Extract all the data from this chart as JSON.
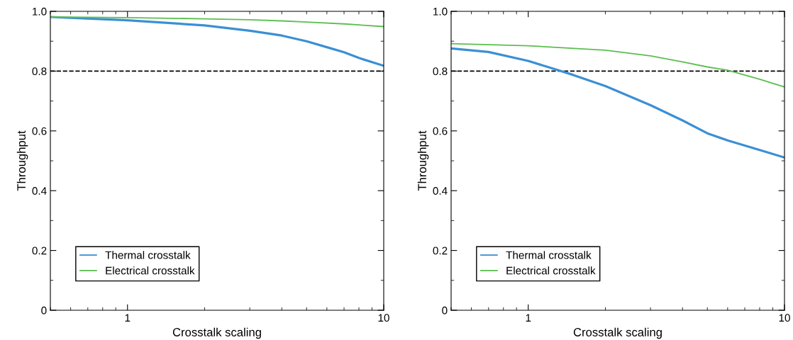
{
  "chart_data": [
    {
      "type": "line",
      "xlabel": "Crosstalk scaling",
      "ylabel": "Throughput",
      "log": "x",
      "xlim": [
        0.5,
        10
      ],
      "xticks": [
        1,
        10
      ],
      "ylim": [
        0,
        1.0
      ],
      "yticks": [
        0,
        0.2,
        0.4,
        0.6,
        0.8,
        {
          "value": 1.0,
          "label": "1.0"
        }
      ],
      "legend": "bottom left",
      "grid": false,
      "marker": "none",
      "line_style": "solid",
      "ref_lines": [
        {
          "axis": "y",
          "value": 0.8,
          "color": "#000000",
          "line_style": "dashed"
        }
      ],
      "series": [
        {
          "name": "Thermal crosstalk",
          "color": "#3b8fd4",
          "x": [
            0.5,
            1,
            2,
            3,
            4,
            5,
            6,
            7,
            8,
            10
          ],
          "values": [
            0.981,
            0.97,
            0.953,
            0.935,
            0.919,
            0.9,
            0.88,
            0.863,
            0.844,
            0.818
          ]
        },
        {
          "name": "Electrical crosstalk",
          "color": "#5bbf4f",
          "x": [
            0.5,
            1,
            2,
            3,
            4,
            5,
            7,
            10
          ],
          "values": [
            0.981,
            0.979,
            0.975,
            0.972,
            0.968,
            0.964,
            0.958,
            0.949
          ]
        }
      ]
    },
    {
      "type": "line",
      "xlabel": "Crosstalk scaling",
      "ylabel": "Throughput",
      "log": "x",
      "xlim": [
        0.5,
        10
      ],
      "xticks": [
        1,
        10
      ],
      "ylim": [
        0,
        1.0
      ],
      "yticks": [
        0,
        0.2,
        0.4,
        0.6,
        0.8,
        {
          "value": 1.0,
          "label": "1.0"
        }
      ],
      "legend": "bottom left",
      "grid": false,
      "marker": "none",
      "line_style": "solid",
      "ref_lines": [
        {
          "axis": "y",
          "value": 0.8,
          "color": "#000000",
          "line_style": "dashed"
        }
      ],
      "series": [
        {
          "name": "Thermal crosstalk",
          "color": "#3b8fd4",
          "x": [
            0.5,
            0.7,
            1,
            1.3,
            1.5,
            2,
            3,
            4,
            5,
            6,
            8,
            10
          ],
          "values": [
            0.876,
            0.864,
            0.834,
            0.804,
            0.787,
            0.75,
            0.686,
            0.635,
            0.592,
            0.568,
            0.536,
            0.511
          ]
        },
        {
          "name": "Electrical crosstalk",
          "color": "#5bbf4f",
          "x": [
            0.5,
            1,
            2,
            3,
            4,
            5,
            6,
            8,
            10
          ],
          "values": [
            0.892,
            0.885,
            0.87,
            0.851,
            0.831,
            0.814,
            0.803,
            0.773,
            0.747
          ]
        }
      ]
    }
  ]
}
